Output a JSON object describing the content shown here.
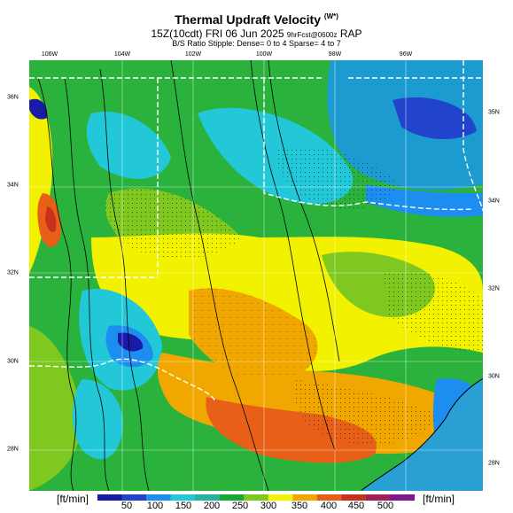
{
  "header": {
    "title": "Thermal Updraft Velocity",
    "title_unit": "(W*)",
    "run_line": "15Z(10cdt) FRI 06 Jun 2025",
    "run_line_small": "9hrFcst@0600z",
    "model": "RAP",
    "note": "B/S Ratio Stipple: Dense= 0 to 4  Sparse= 4 to 7"
  },
  "longitude_labels": [
    "106W",
    "104W",
    "102W",
    "100W",
    "98W",
    "96W"
  ],
  "latitude_labels_left": [
    "36N",
    "34N",
    "32N",
    "30N",
    "28N"
  ],
  "latitude_labels_right": [
    "35N",
    "34N",
    "32N",
    "30N",
    "28N"
  ],
  "colorbar": {
    "unit_left": "[ft/min]",
    "unit_right": "[ft/min]",
    "ticks": [
      "50",
      "100",
      "150",
      "200",
      "250",
      "300",
      "350",
      "400",
      "450",
      "500"
    ],
    "colors": [
      "#1a1aa8",
      "#2244cc",
      "#1c8ef0",
      "#22c8d8",
      "#27b2a0",
      "#18a838",
      "#7ec820",
      "#f2f200",
      "#f0a800",
      "#e86018",
      "#c83020",
      "#a0205a",
      "#7c1a8c"
    ]
  },
  "map": {
    "background": "#35b040"
  }
}
